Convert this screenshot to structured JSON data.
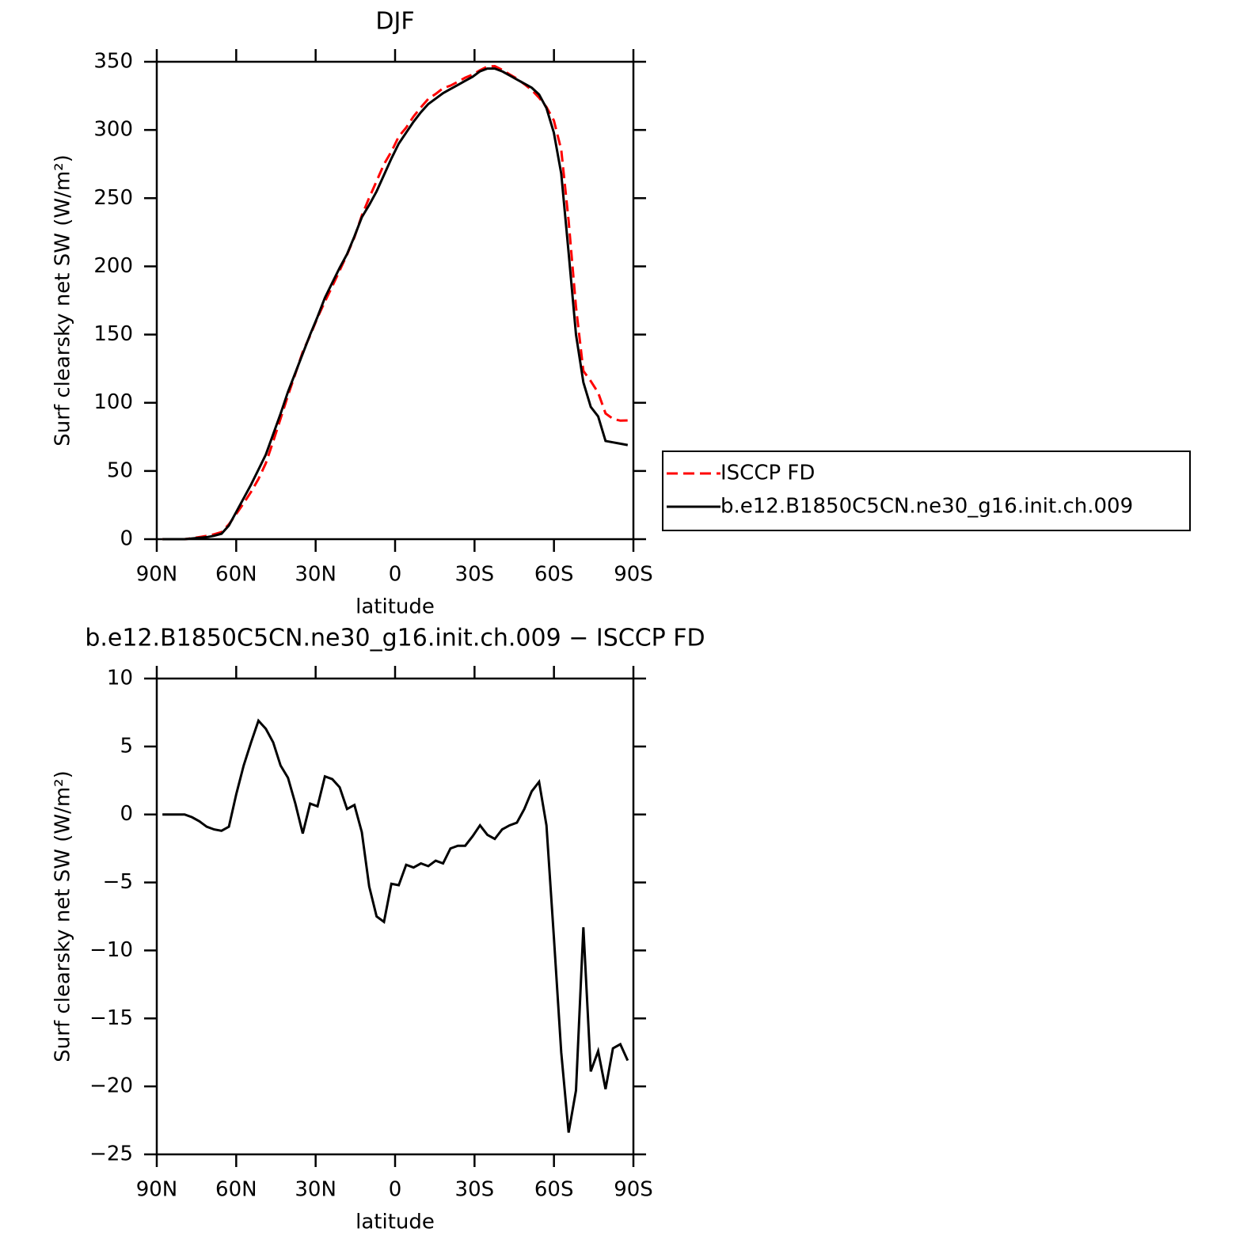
{
  "chart_data": [
    {
      "type": "line",
      "title": "DJF",
      "xlabel": "latitude",
      "ylabel": "Surf clearsky net SW (W/m²)",
      "xlim": [
        90,
        -90
      ],
      "ylim": [
        0,
        350
      ],
      "xticks": [
        {
          "value": 90,
          "label": "90N"
        },
        {
          "value": 60,
          "label": "60N"
        },
        {
          "value": 30,
          "label": "30N"
        },
        0,
        {
          "value": -30,
          "label": "30S"
        },
        {
          "value": -60,
          "label": "60S"
        },
        {
          "value": -90,
          "label": "90S"
        }
      ],
      "yticks": [
        0,
        50,
        100,
        150,
        200,
        250,
        300,
        350
      ],
      "legend": "right",
      "x": [
        87.86,
        85.07,
        82.28,
        79.49,
        76.7,
        73.92,
        71.13,
        68.34,
        65.55,
        62.76,
        59.97,
        57.18,
        54.39,
        51.6,
        48.81,
        46.03,
        43.24,
        40.45,
        37.66,
        34.87,
        32.08,
        29.29,
        26.5,
        23.71,
        20.92,
        18.14,
        15.35,
        12.56,
        9.77,
        6.98,
        4.19,
        1.4,
        -1.39,
        -4.18,
        -6.97,
        -9.76,
        -12.54,
        -15.33,
        -18.12,
        -20.91,
        -23.7,
        -26.49,
        -29.28,
        -32.07,
        -34.86,
        -37.65,
        -40.43,
        -43.22,
        -46.01,
        -48.8,
        -51.59,
        -54.38,
        -57.17,
        -59.96,
        -62.75,
        -65.54,
        -68.32,
        -71.11,
        -73.9,
        -76.69,
        -79.48,
        -82.27,
        -85.06,
        -87.85
      ],
      "series": [
        {
          "name": "ISCCP FD",
          "color": "#ff0000",
          "style": "dashed",
          "values": [
            0,
            0,
            0,
            0,
            0.7,
            1.5,
            2.4,
            3.6,
            5.2,
            10.9,
            18.5,
            26.4,
            34.7,
            44.1,
            55.7,
            71.7,
            88.4,
            105.3,
            121.2,
            137.4,
            149.2,
            162.4,
            174.2,
            185.4,
            197,
            208.6,
            221.3,
            237.3,
            250.3,
            262.5,
            274.9,
            284.1,
            295.2,
            301.7,
            309.9,
            316.6,
            322.8,
            326.4,
            330.6,
            332.5,
            335.3,
            338.3,
            340.6,
            343.8,
            346.5,
            346.8,
            344.1,
            340.8,
            337.6,
            333.6,
            329.3,
            323.6,
            316.8,
            307,
            285.5,
            233.4,
            170.3,
            123.3,
            115.9,
            107.4,
            92.2,
            88.2,
            86.9,
            87.1
          ]
        },
        {
          "name": "b.e12.B1850C5CN.ne30_g16.init.ch.009",
          "color": "#000000",
          "style": "solid",
          "values": [
            0,
            0,
            0,
            0,
            0.5,
            1,
            1.5,
            2.5,
            4,
            10,
            20,
            30,
            40,
            51,
            62,
            77,
            92,
            108,
            122,
            136,
            150,
            163,
            177,
            188,
            199,
            209,
            222,
            236,
            245,
            255,
            267,
            279,
            290,
            298,
            306,
            313,
            319,
            323,
            327,
            330,
            333,
            336,
            339,
            343,
            345,
            345,
            343,
            340,
            337,
            334,
            331,
            326,
            316,
            298,
            268,
            210,
            150,
            115,
            97,
            90,
            72,
            71,
            70,
            69
          ]
        }
      ]
    },
    {
      "type": "line",
      "title": "b.e12.B1850C5CN.ne30_g16.init.ch.009 − ISCCP FD",
      "xlabel": "latitude",
      "ylabel": "Surf clearsky net SW (W/m²)",
      "xlim": [
        90,
        -90
      ],
      "ylim": [
        -25,
        10
      ],
      "xticks": [
        {
          "value": 90,
          "label": "90N"
        },
        {
          "value": 60,
          "label": "60N"
        },
        {
          "value": 30,
          "label": "30N"
        },
        0,
        {
          "value": -30,
          "label": "30S"
        },
        {
          "value": -60,
          "label": "60S"
        },
        {
          "value": -90,
          "label": "90S"
        }
      ],
      "yticks": [
        {
          "value": -25,
          "label": "−25"
        },
        {
          "value": -20,
          "label": "−20"
        },
        {
          "value": -15,
          "label": "−15"
        },
        {
          "value": -10,
          "label": "−10"
        },
        {
          "value": -5,
          "label": "−5"
        },
        0,
        5,
        10
      ],
      "x": [
        87.86,
        85.07,
        82.28,
        79.49,
        76.7,
        73.92,
        71.13,
        68.34,
        65.55,
        62.76,
        59.97,
        57.18,
        54.39,
        51.6,
        48.81,
        46.03,
        43.24,
        40.45,
        37.66,
        34.87,
        32.08,
        29.29,
        26.5,
        23.71,
        20.92,
        18.14,
        15.35,
        12.56,
        9.77,
        6.98,
        4.19,
        1.4,
        -1.39,
        -4.18,
        -6.97,
        -9.76,
        -12.54,
        -15.33,
        -18.12,
        -20.91,
        -23.7,
        -26.49,
        -29.28,
        -32.07,
        -34.86,
        -37.65,
        -40.43,
        -43.22,
        -46.01,
        -48.8,
        -51.59,
        -54.38,
        -57.17,
        -59.96,
        -62.75,
        -65.54,
        -68.32,
        -71.11,
        -73.9,
        -76.69,
        -79.48,
        -82.27,
        -85.06,
        -87.85
      ],
      "series": [
        {
          "color": "#000000",
          "style": "solid",
          "values": [
            0,
            0,
            0,
            0,
            -0.2,
            -0.5,
            -0.9,
            -1.1,
            -1.2,
            -0.9,
            1.5,
            3.6,
            5.3,
            6.9,
            6.3,
            5.3,
            3.6,
            2.7,
            0.8,
            -1.4,
            0.8,
            0.6,
            2.8,
            2.6,
            2.0,
            0.4,
            0.7,
            -1.3,
            -5.3,
            -7.5,
            -7.9,
            -5.1,
            -5.2,
            -3.7,
            -3.9,
            -3.6,
            -3.8,
            -3.4,
            -3.6,
            -2.5,
            -2.3,
            -2.3,
            -1.6,
            -0.8,
            -1.5,
            -1.8,
            -1.1,
            -0.8,
            -0.6,
            0.4,
            1.7,
            2.4,
            -0.8,
            -9,
            -17.5,
            -23.4,
            -20.3,
            -8.3,
            -18.9,
            -17.4,
            -20.2,
            -17.2,
            -16.9,
            -18.1
          ]
        }
      ]
    }
  ]
}
